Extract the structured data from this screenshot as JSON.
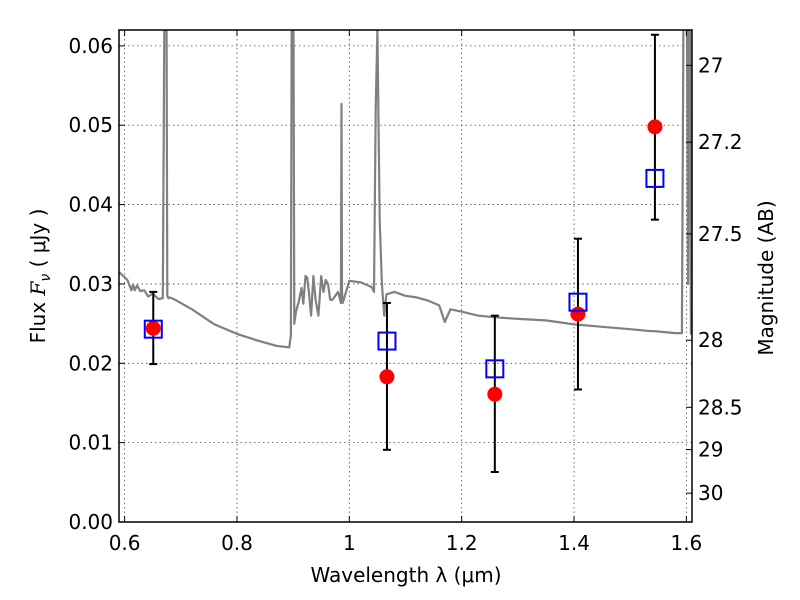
{
  "chart_data": {
    "type": "scatter",
    "xlabel": "Wavelength  λ (μm)",
    "ylabel": "Flux  F_ν  ( μJy )",
    "ylabel_parts": {
      "pre": "Flux ",
      "var": "F",
      "sub": "ν",
      "post": "  ( μJy )"
    },
    "y2label": "Magnitude (AB)",
    "xlim": [
      0.59,
      1.61
    ],
    "ylim": [
      0.0,
      0.062
    ],
    "grid": true,
    "x_ticks": [
      0.6,
      0.8,
      1.0,
      1.2,
      1.4,
      1.6
    ],
    "x_tick_labels": [
      "0.6",
      "0.8",
      "1",
      "1.2",
      "1.4",
      "1.6"
    ],
    "y_ticks": [
      0.0,
      0.01,
      0.02,
      0.03,
      0.04,
      0.05,
      0.06
    ],
    "y_tick_labels": [
      "0.00",
      "0.01",
      "0.02",
      "0.03",
      "0.04",
      "0.05",
      "0.06"
    ],
    "y2_ticks": [
      27,
      27.2,
      27.5,
      28,
      28.5,
      29,
      30
    ],
    "y2_tick_labels": [
      "27",
      "27.2",
      "27.5",
      "28",
      "28.5",
      "29",
      "30"
    ],
    "series": [
      {
        "kind": "observed",
        "color": "#ff0000",
        "points": [
          {
            "x": 0.651,
            "y": 0.0244,
            "ylow": 0.0199,
            "yhigh": 0.029
          },
          {
            "x": 1.067,
            "y": 0.0183,
            "ylow": 0.0091,
            "yhigh": 0.0276
          },
          {
            "x": 1.259,
            "y": 0.0161,
            "ylow": 0.0063,
            "yhigh": 0.026
          },
          {
            "x": 1.407,
            "y": 0.0262,
            "ylow": 0.0167,
            "yhigh": 0.0357
          },
          {
            "x": 1.544,
            "y": 0.0498,
            "ylow": 0.0381,
            "yhigh": 0.0614
          }
        ]
      },
      {
        "kind": "model_photometry",
        "color": "#0000ff",
        "points": [
          {
            "x": 0.651,
            "y": 0.0243
          },
          {
            "x": 1.067,
            "y": 0.0228
          },
          {
            "x": 1.259,
            "y": 0.0193
          },
          {
            "x": 1.407,
            "y": 0.0277
          },
          {
            "x": 1.544,
            "y": 0.0433
          }
        ]
      },
      {
        "kind": "model_spectrum",
        "color": "#808080",
        "x": [
          0.59,
          0.605,
          0.612,
          0.615,
          0.618,
          0.622,
          0.628,
          0.635,
          0.642,
          0.65,
          0.66,
          0.668,
          0.672,
          0.674,
          0.676,
          0.678,
          0.68,
          0.69,
          0.72,
          0.76,
          0.8,
          0.84,
          0.87,
          0.893,
          0.896,
          0.898,
          0.9,
          0.902,
          0.905,
          0.91,
          0.915,
          0.918,
          0.922,
          0.925,
          0.928,
          0.932,
          0.936,
          0.94,
          0.945,
          0.95,
          0.954,
          0.958,
          0.962,
          0.966,
          0.97,
          0.975,
          0.98,
          0.985,
          0.986,
          0.987,
          0.988,
          0.99,
          1.0,
          1.02,
          1.04,
          1.044,
          1.047,
          1.05,
          1.054,
          1.058,
          1.062,
          1.066,
          1.08,
          1.1,
          1.12,
          1.14,
          1.16,
          1.17,
          1.18,
          1.2,
          1.23,
          1.26,
          1.3,
          1.35,
          1.4,
          1.45,
          1.5,
          1.53,
          1.55,
          1.58,
          1.592,
          1.596,
          1.6,
          1.603,
          1.606,
          1.608
        ],
        "y": [
          0.0315,
          0.0305,
          0.0292,
          0.0299,
          0.0292,
          0.0298,
          0.0291,
          0.0292,
          0.0284,
          0.0288,
          0.0281,
          0.0282,
          0.08,
          0.08,
          0.0285,
          0.0282,
          0.0283,
          0.028,
          0.0268,
          0.0249,
          0.0237,
          0.0228,
          0.0222,
          0.022,
          0.0235,
          0.08,
          0.08,
          0.025,
          0.0265,
          0.0278,
          0.0295,
          0.0275,
          0.031,
          0.0308,
          0.029,
          0.026,
          0.031,
          0.028,
          0.026,
          0.031,
          0.029,
          0.0305,
          0.03,
          0.028,
          0.028,
          0.0285,
          0.029,
          0.0276,
          0.0527,
          0.029,
          0.0276,
          0.028,
          0.0304,
          0.0302,
          0.0296,
          0.029,
          0.052,
          0.062,
          0.038,
          0.03,
          0.026,
          0.0287,
          0.029,
          0.0285,
          0.0283,
          0.0279,
          0.0273,
          0.0252,
          0.0268,
          0.0265,
          0.026,
          0.0258,
          0.0256,
          0.0254,
          0.0249,
          0.0246,
          0.0243,
          0.0241,
          0.024,
          0.0238,
          0.0238,
          0.08,
          0.08,
          0.03,
          0.08,
          0.0236
        ]
      }
    ]
  }
}
